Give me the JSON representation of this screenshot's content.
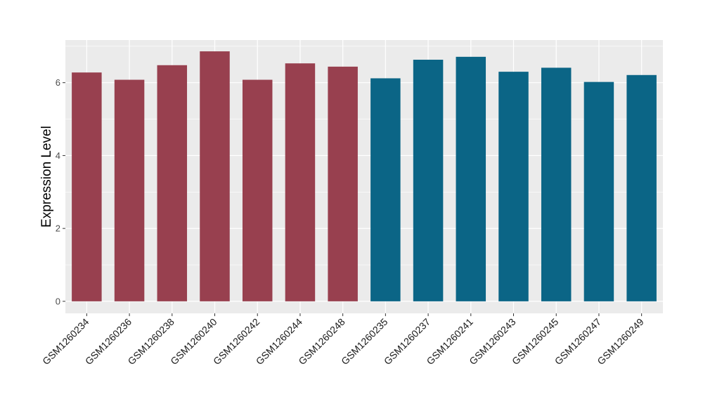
{
  "chart_data": {
    "type": "bar",
    "title": "",
    "xlabel": "",
    "ylabel": "Expression Level",
    "ylim": [
      -0.33,
      7.17
    ],
    "yticks": [
      0,
      2,
      4,
      6
    ],
    "grid": true,
    "legend": "none",
    "categories": [
      "GSM1260234",
      "GSM1260236",
      "GSM1260238",
      "GSM1260240",
      "GSM1260242",
      "GSM1260244",
      "GSM1260248",
      "GSM1260235",
      "GSM1260237",
      "GSM1260241",
      "GSM1260243",
      "GSM1260245",
      "GSM1260247",
      "GSM1260249"
    ],
    "values": [
      6.28,
      6.08,
      6.48,
      6.86,
      6.08,
      6.53,
      6.44,
      6.12,
      6.63,
      6.71,
      6.3,
      6.41,
      6.02,
      6.21
    ],
    "groups": [
      1,
      1,
      1,
      1,
      1,
      1,
      1,
      2,
      2,
      2,
      2,
      2,
      2,
      2
    ],
    "colors": {
      "group1": "#98404f",
      "group2": "#0b6586",
      "panel_background": "#ebebeb",
      "gridline": "#ffffff"
    }
  }
}
